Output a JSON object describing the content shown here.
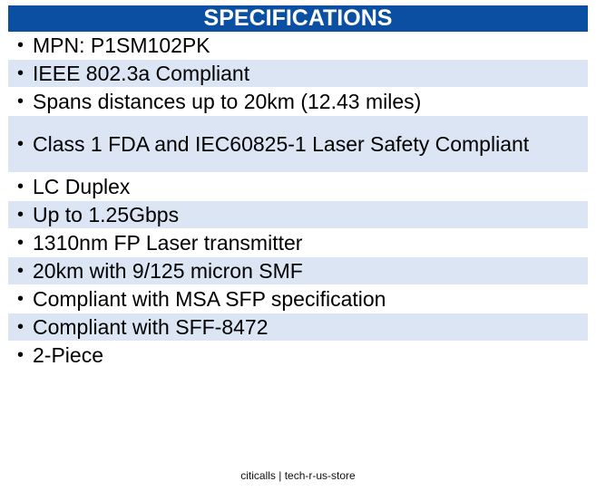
{
  "header": {
    "title": "SPECIFICATIONS"
  },
  "bullet_glyph": "•",
  "specs": [
    "MPN: P1SM102PK",
    "IEEE 802.3a Compliant",
    "Spans distances up to 20km (12.43 miles)",
    "Class 1 FDA and IEC60825-1 Laser Safety Compliant",
    "LC Duplex",
    "Up to 1.25Gbps",
    "1310nm FP Laser transmitter",
    "20km with 9/125 micron SMF",
    "Compliant with MSA SFP specification",
    "Compliant with SFF-8472",
    "2-Piece"
  ],
  "footer": {
    "text": "citicalls | tech-r-us-store"
  },
  "colors": {
    "header_bg": "#0b4fa3",
    "header_text": "#ffffff",
    "alt_row_bg": "#dbe5f3"
  }
}
